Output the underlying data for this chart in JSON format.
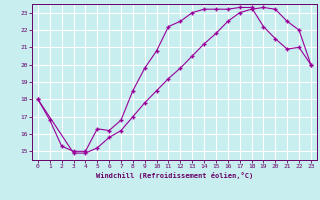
{
  "xlabel": "Windchill (Refroidissement éolien,°C)",
  "bg_color": "#c8eef0",
  "line_color": "#990099",
  "grid_color": "#ffffff",
  "xlim": [
    -0.5,
    23.5
  ],
  "ylim": [
    14.5,
    23.5
  ],
  "xticks": [
    0,
    1,
    2,
    3,
    4,
    5,
    6,
    7,
    8,
    9,
    10,
    11,
    12,
    13,
    14,
    15,
    16,
    17,
    18,
    19,
    20,
    21,
    22,
    23
  ],
  "yticks": [
    15,
    16,
    17,
    18,
    19,
    20,
    21,
    22,
    23
  ],
  "line1_x": [
    0,
    1,
    2,
    3,
    4,
    5,
    6,
    7,
    8,
    9,
    10,
    11,
    12,
    13,
    14,
    15,
    16,
    17,
    18,
    19,
    20,
    21,
    22,
    23
  ],
  "line1_y": [
    18.0,
    16.8,
    15.3,
    15.0,
    15.0,
    16.3,
    16.2,
    16.8,
    18.5,
    19.8,
    20.8,
    22.2,
    22.5,
    23.0,
    23.2,
    23.2,
    23.2,
    23.3,
    23.3,
    22.2,
    21.5,
    20.9,
    21.0,
    20.0
  ],
  "line2_x": [
    0,
    3,
    4,
    5,
    6,
    7,
    8,
    9,
    10,
    11,
    12,
    13,
    14,
    15,
    16,
    17,
    18,
    19,
    20,
    21,
    22,
    23
  ],
  "line2_y": [
    18.0,
    14.9,
    14.9,
    15.2,
    15.8,
    16.2,
    17.0,
    17.8,
    18.5,
    19.2,
    19.8,
    20.5,
    21.2,
    21.8,
    22.5,
    23.0,
    23.2,
    23.3,
    23.2,
    22.5,
    22.0,
    20.0
  ]
}
